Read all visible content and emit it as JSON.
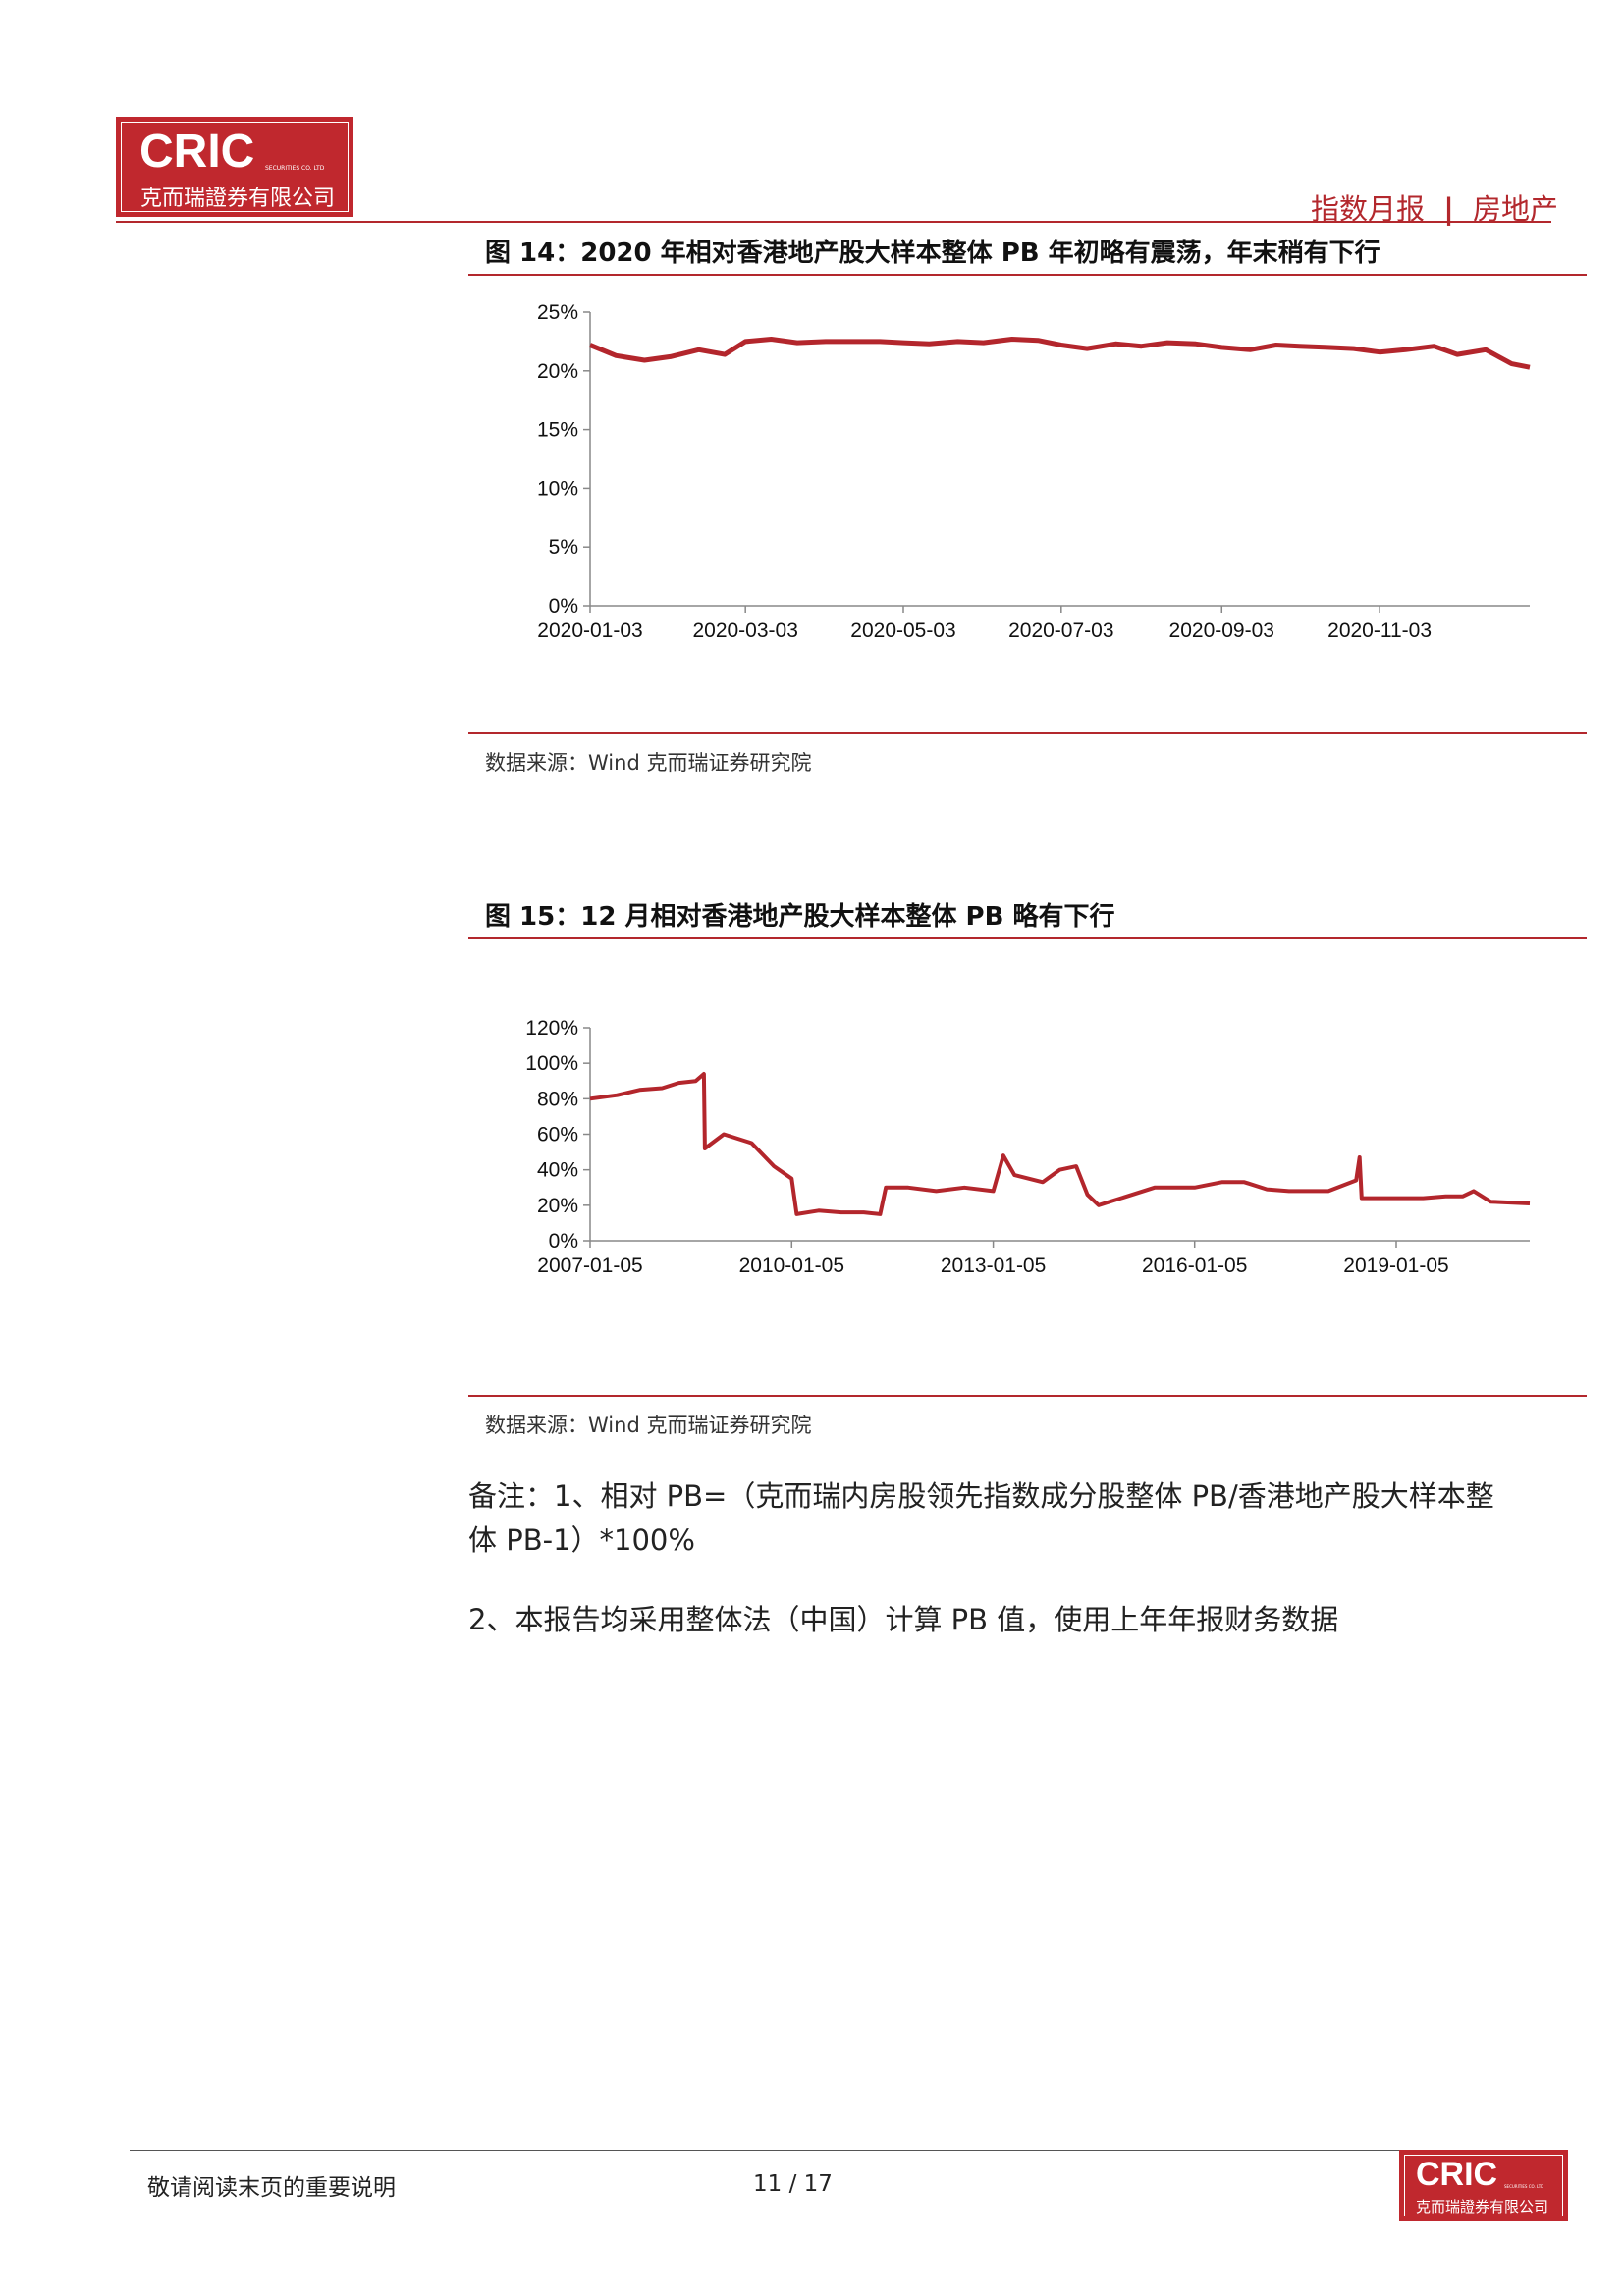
{
  "header": {
    "logo_text": "CRIC",
    "logo_small": "SECURITIES CO. LTD",
    "logo_sub": "克而瑞證券有限公司",
    "report_type": "指数月报",
    "separator": "|",
    "sector": "房地产",
    "accent_color": "#b3282d"
  },
  "figure14": {
    "caption": "图 14：2020 年相对香港地产股大样本整体 PB 年初略有震荡，年末稍有下行",
    "source": "数据来源：Wind  克而瑞证券研究院",
    "chart_data": {
      "type": "line",
      "x_ticks": [
        "2020-01-03",
        "2020-03-03",
        "2020-05-03",
        "2020-07-03",
        "2020-09-03",
        "2020-11-03"
      ],
      "y_ticks": [
        "25%",
        "20%",
        "15%",
        "10%",
        "5%",
        "0%"
      ],
      "ylim": [
        0,
        25
      ],
      "xlim": [
        "2020-01-03",
        "2020-12-31"
      ],
      "line_color": "#b3262c",
      "series": [
        {
          "x": [
            "2020-01-03",
            "2020-01-13",
            "2020-01-24",
            "2020-02-03",
            "2020-02-14",
            "2020-02-24",
            "2020-03-03",
            "2020-03-13",
            "2020-03-23",
            "2020-04-03",
            "2020-04-13",
            "2020-04-24",
            "2020-05-03",
            "2020-05-13",
            "2020-05-24",
            "2020-06-03",
            "2020-06-14",
            "2020-06-24",
            "2020-07-03",
            "2020-07-13",
            "2020-07-24",
            "2020-08-03",
            "2020-08-13",
            "2020-08-24",
            "2020-09-03",
            "2020-09-14",
            "2020-09-24",
            "2020-10-03",
            "2020-10-14",
            "2020-10-24",
            "2020-11-03",
            "2020-11-13",
            "2020-11-24",
            "2020-12-03",
            "2020-12-14",
            "2020-12-24",
            "2020-12-31"
          ],
          "values": [
            22.2,
            21.3,
            20.9,
            21.2,
            21.8,
            21.4,
            22.5,
            22.7,
            22.4,
            22.5,
            22.5,
            22.5,
            22.4,
            22.3,
            22.5,
            22.4,
            22.7,
            22.6,
            22.2,
            21.9,
            22.3,
            22.1,
            22.4,
            22.3,
            22.0,
            21.8,
            22.2,
            22.1,
            22.0,
            21.9,
            21.6,
            21.8,
            22.1,
            21.4,
            21.8,
            20.6,
            20.3
          ]
        }
      ]
    }
  },
  "figure15": {
    "caption": "图 15：12 月相对香港地产股大样本整体 PB 略有下行",
    "source": "数据来源：Wind  克而瑞证券研究院",
    "chart_data": {
      "type": "line",
      "x_ticks": [
        "2007-01-05",
        "2010-01-05",
        "2013-01-05",
        "2016-01-05",
        "2019-01-05"
      ],
      "y_ticks": [
        "120%",
        "100%",
        "80%",
        "60%",
        "40%",
        "20%",
        "0%"
      ],
      "ylim": [
        0,
        120
      ],
      "xlim": [
        "2007-01-05",
        "2020-12-31"
      ],
      "line_color": "#b3262c",
      "series": [
        {
          "x": [
            "2007-01-05",
            "2007-06-01",
            "2007-10-01",
            "2008-02-01",
            "2008-05-01",
            "2008-08-01",
            "2008-09-15",
            "2008-09-20",
            "2009-01-01",
            "2009-06-01",
            "2009-10-01",
            "2010-01-05",
            "2010-02-01",
            "2010-06-01",
            "2010-10-01",
            "2011-02-01",
            "2011-05-01",
            "2011-06-01",
            "2011-10-01",
            "2012-03-01",
            "2012-08-01",
            "2013-01-05",
            "2013-03-01",
            "2013-05-01",
            "2013-10-01",
            "2014-01-01",
            "2014-04-01",
            "2014-06-01",
            "2014-08-01",
            "2015-01-01",
            "2015-06-01",
            "2016-01-05",
            "2016-06-01",
            "2016-10-01",
            "2017-02-01",
            "2017-06-01",
            "2018-01-01",
            "2018-06-01",
            "2018-06-20",
            "2018-07-01",
            "2019-01-05",
            "2019-06-01",
            "2019-10-01",
            "2020-01-01",
            "2020-03-01",
            "2020-06-01",
            "2020-12-31"
          ],
          "values": [
            80,
            82,
            85,
            86,
            89,
            90,
            94,
            52,
            60,
            55,
            42,
            35,
            15,
            17,
            16,
            16,
            15,
            30,
            30,
            28,
            30,
            28,
            48,
            37,
            33,
            40,
            42,
            26,
            20,
            25,
            30,
            30,
            33,
            33,
            29,
            28,
            28,
            34,
            47,
            24,
            24,
            24,
            25,
            25,
            28,
            22,
            21
          ]
        }
      ]
    }
  },
  "notes": {
    "note1_line1": "备注：1、相对 PB=（克而瑞内房股领先指数成分股整体 PB/香港地产股大样本整",
    "note1_line2": "体 PB-1）*100%",
    "note2": "2、本报告均采用整体法（中国）计算 PB 值，使用上年年报财务数据"
  },
  "footer": {
    "disclaimer": "敬请阅读末页的重要说明",
    "page": "11 / 17",
    "logo_text": "CRIC",
    "logo_small": "SECURITIES CO. LTD",
    "logo_sub": "克而瑞證券有限公司"
  }
}
